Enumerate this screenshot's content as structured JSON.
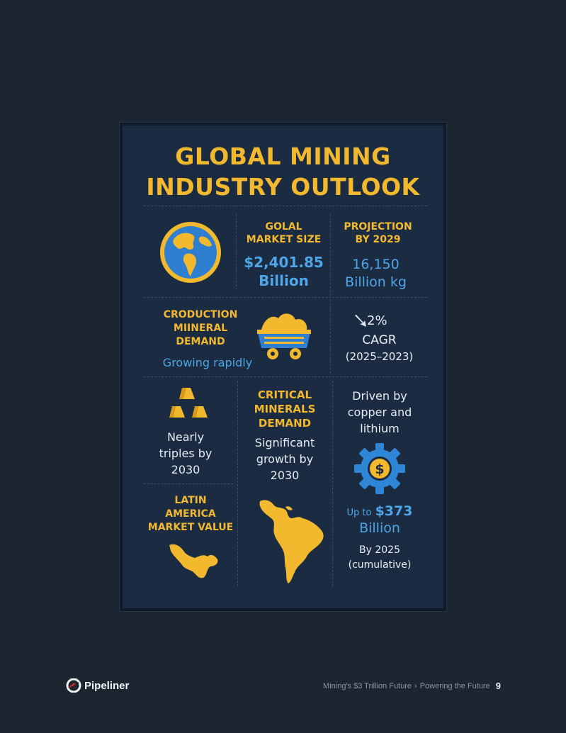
{
  "infographic": {
    "title_line1": "GLOBAL MINING",
    "title_line2": "INDUSTRY OUTLOOK",
    "market_size": {
      "label_line1": "GOLAL",
      "label_line2": "MARKET SIZE",
      "value_line1": "$2,401.85",
      "value_line2": "Billion"
    },
    "projection": {
      "label_line1": "PROJECTION",
      "label_line2": "BY 2029",
      "value_line1": "16,150",
      "value_line2": "Billion kg"
    },
    "production": {
      "label_line1": "CRODUCTION",
      "label_line2": "MIINERAL",
      "label_line3": "DEMAND",
      "value": "Growing rapidly"
    },
    "cagr": {
      "value": "2%",
      "label": "CAGR",
      "period": "(2025–2023)"
    },
    "triples": {
      "line1": "Nearly",
      "line2": "triples by",
      "line3": "2030"
    },
    "critical": {
      "label_line1": "CRITICAL",
      "label_line2": "MINERALS",
      "label_line3": "DEMAND",
      "value_line1": "Significant",
      "value_line2": "growth by",
      "value_line3": "2030"
    },
    "driven": {
      "line1": "Driven by",
      "line2": "copper and",
      "line3": "lithium"
    },
    "latin": {
      "label_line1": "LATIN",
      "label_line2": "AMERICA",
      "label_line3": "MARKET VALUE"
    },
    "investment": {
      "prefix": "Up to",
      "amount": "$373",
      "unit": "Billion",
      "by_line1": "By 2025",
      "by_line2": "(cumulative)"
    }
  },
  "footer": {
    "logo_text": "Pipeliner",
    "running_title": "Mining's $3 Trillion Future",
    "separator": "›",
    "section": "Powering the Future",
    "page_number": "9"
  },
  "colors": {
    "page_background": "#1b2631",
    "card_background": "#1a2b42",
    "gold": "#f2b82e",
    "blue": "#4ea6e8",
    "white": "#e8edf2"
  },
  "icons": [
    "globe-icon",
    "mine-cart-icon",
    "trend-arrow-icon",
    "gold-nuggets-icon",
    "central-america-map-icon",
    "south-america-map-icon",
    "gear-dollar-icon",
    "pipeliner-logo-icon"
  ]
}
